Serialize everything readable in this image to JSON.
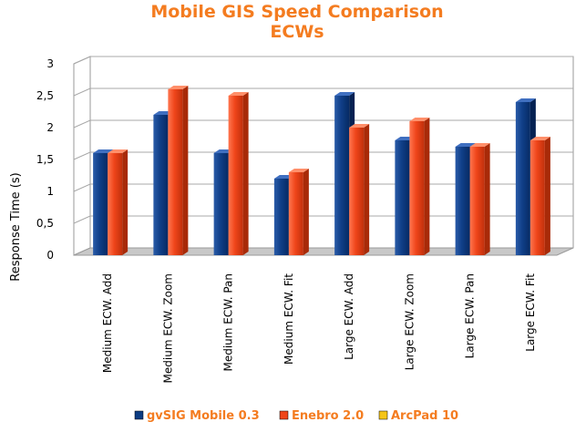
{
  "chart_data": {
    "type": "bar",
    "title": "Mobile GIS Speed Comparison",
    "subtitle": "ECWs",
    "xlabel": "",
    "ylabel": "Response Time (s)",
    "ylim": [
      0,
      3
    ],
    "yticks": [
      "0",
      "0,5",
      "1",
      "1,5",
      "2",
      "2,5",
      "3"
    ],
    "categories": [
      "Medium ECW. Add",
      "Medium ECW. Zoom",
      "Medium ECW. Pan",
      "Medium ECW. Fit",
      "Large ECW. Add",
      "Large ECW. Zoom",
      "Large ECW. Pan",
      "Large ECW. Fit"
    ],
    "series": [
      {
        "name": "gvSIG Mobile 0.3",
        "color": "#0c3c82",
        "values": [
          1.6,
          2.2,
          1.6,
          1.2,
          2.5,
          1.8,
          1.7,
          2.4
        ]
      },
      {
        "name": "Enebro 2.0",
        "color": "#f0461a",
        "values": [
          1.6,
          2.6,
          2.5,
          1.3,
          2.0,
          2.1,
          1.7,
          1.8
        ]
      },
      {
        "name": "ArcPad 10",
        "color": "#f5c518",
        "values": [
          null,
          null,
          null,
          null,
          null,
          null,
          null,
          null
        ]
      }
    ],
    "grid": true,
    "legend_position": "bottom"
  }
}
